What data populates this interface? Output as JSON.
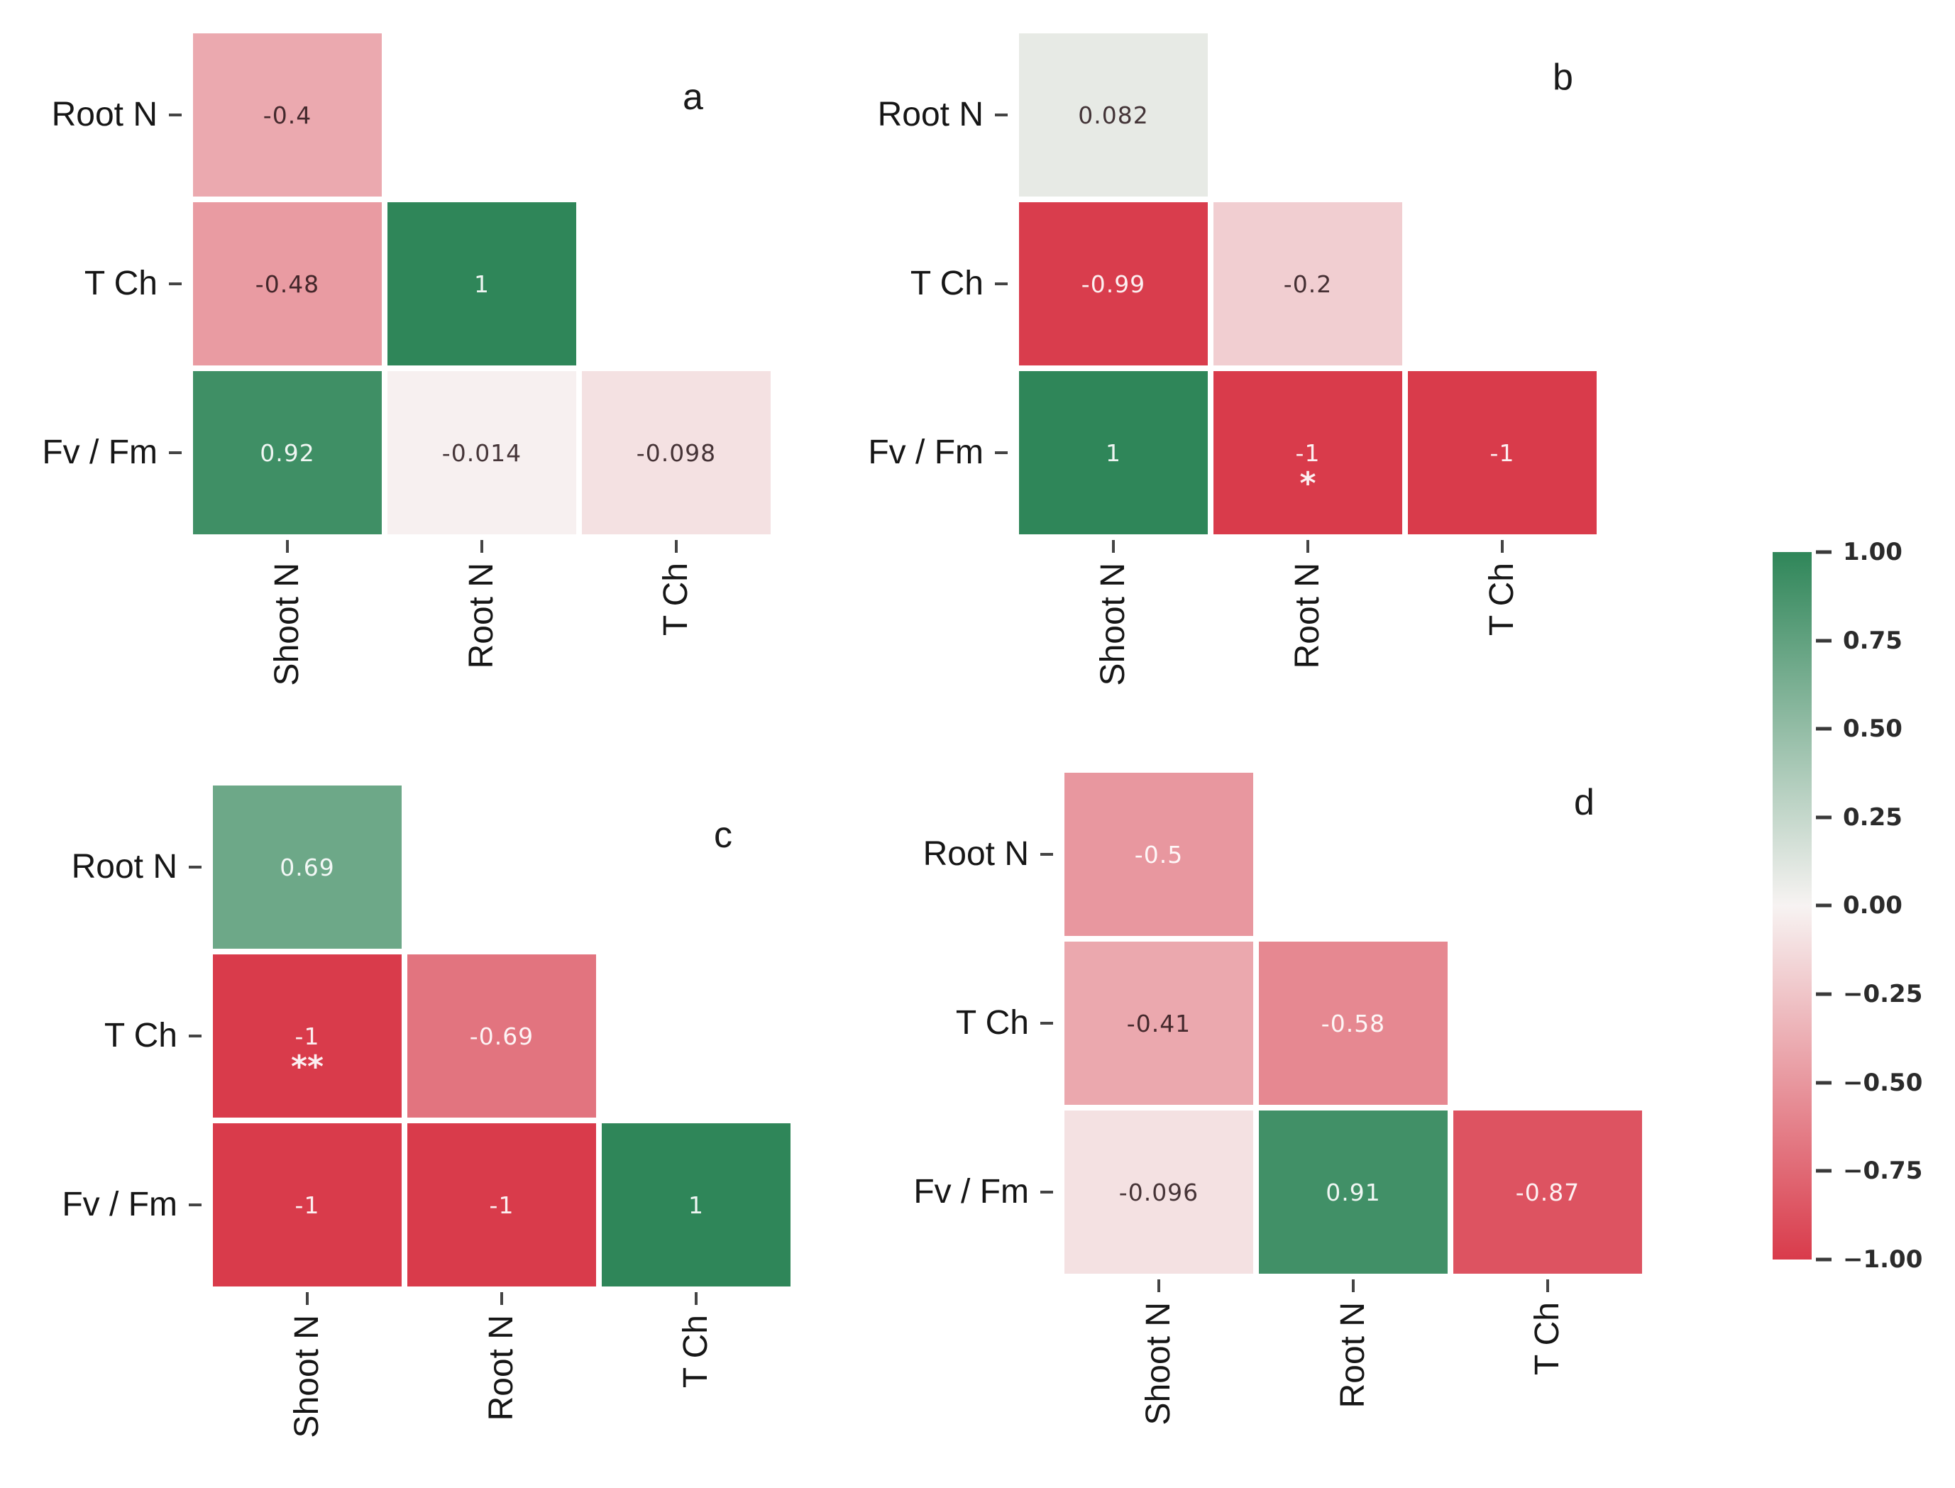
{
  "chart_data": [
    {
      "type": "heatmap",
      "panel_label": "a",
      "rows": [
        "Root N",
        "T Ch",
        "Fv / Fm"
      ],
      "cols": [
        "Shoot N",
        "Root N",
        "T Ch"
      ],
      "values": [
        [
          -0.4,
          null,
          null
        ],
        [
          -0.48,
          1,
          null
        ],
        [
          0.92,
          -0.014,
          -0.098
        ]
      ],
      "labels": [
        [
          "-0.4",
          "",
          ""
        ],
        [
          "-0.48",
          "1",
          ""
        ],
        [
          "0.92",
          "-0.014",
          "-0.098"
        ]
      ],
      "significance": [
        [
          "",
          "",
          ""
        ],
        [
          "",
          "",
          ""
        ],
        [
          "",
          "",
          ""
        ]
      ]
    },
    {
      "type": "heatmap",
      "panel_label": "b",
      "rows": [
        "Root N",
        "T Ch",
        "Fv / Fm"
      ],
      "cols": [
        "Shoot N",
        "Root N",
        "T Ch"
      ],
      "values": [
        [
          0.082,
          null,
          null
        ],
        [
          -0.99,
          -0.2,
          null
        ],
        [
          1,
          -1,
          -1
        ]
      ],
      "labels": [
        [
          "0.082",
          "",
          ""
        ],
        [
          "-0.99",
          "-0.2",
          ""
        ],
        [
          "1",
          "-1",
          "-1"
        ]
      ],
      "significance": [
        [
          "",
          "",
          ""
        ],
        [
          "",
          "",
          ""
        ],
        [
          "",
          "*",
          ""
        ]
      ]
    },
    {
      "type": "heatmap",
      "panel_label": "c",
      "rows": [
        "Root N",
        "T Ch",
        "Fv / Fm"
      ],
      "cols": [
        "Shoot N",
        "Root N",
        "T Ch"
      ],
      "values": [
        [
          0.69,
          null,
          null
        ],
        [
          -1,
          -0.69,
          null
        ],
        [
          -1,
          -1,
          1
        ]
      ],
      "labels": [
        [
          "0.69",
          "",
          ""
        ],
        [
          "-1",
          "-0.69",
          ""
        ],
        [
          "-1",
          "-1",
          "1"
        ]
      ],
      "significance": [
        [
          "",
          "",
          ""
        ],
        [
          "**",
          "",
          ""
        ],
        [
          "",
          "",
          ""
        ]
      ]
    },
    {
      "type": "heatmap",
      "panel_label": "d",
      "rows": [
        "Root N",
        "T Ch",
        "Fv / Fm"
      ],
      "cols": [
        "Shoot N",
        "Root N",
        "T Ch"
      ],
      "values": [
        [
          -0.5,
          null,
          null
        ],
        [
          -0.41,
          -0.58,
          null
        ],
        [
          -0.096,
          0.91,
          -0.87
        ]
      ],
      "labels": [
        [
          "-0.5",
          "",
          ""
        ],
        [
          "-0.41",
          "-0.58",
          ""
        ],
        [
          "-0.096",
          "0.91",
          "-0.87"
        ]
      ],
      "significance": [
        [
          "",
          "",
          ""
        ],
        [
          "",
          "",
          ""
        ],
        [
          "",
          "",
          ""
        ]
      ]
    }
  ],
  "colorbar": {
    "tick_labels": [
      "1.00",
      "0.75",
      "0.50",
      "0.25",
      "0.00",
      "−0.25",
      "−0.50",
      "−0.75",
      "−1.00"
    ],
    "vmin": -1,
    "vmax": 1,
    "colors": {
      "positive_end": "#2f8659",
      "midpoint": "#f7f3f2",
      "negative_end": "#d93b4b"
    }
  },
  "text_colors": {
    "dark_annotation": "rgba(30,12,16,0.82)",
    "light_annotation": "rgba(255,255,255,0.92)",
    "light_text_threshold": 0.5
  }
}
